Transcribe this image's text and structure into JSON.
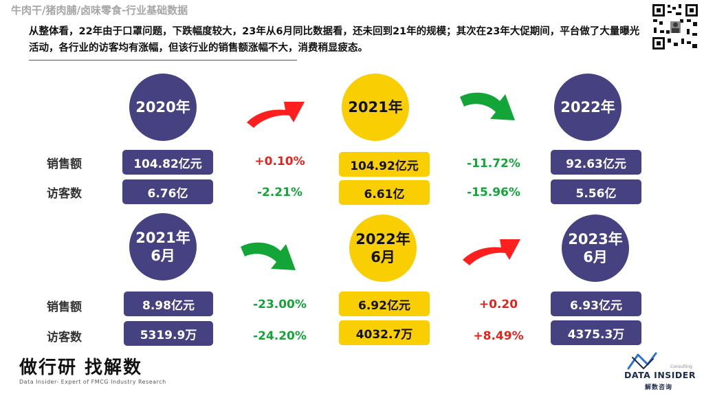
{
  "header": {
    "category_title": "牛肉干/猪肉脯/卤味零食-行业基础数据",
    "summary": "从整体看，22年由于口罩问题，下跌幅度较大，23年从6月同比数据看，还未回到21年的规模；其次在23年大促期间，平台做了大量曝光活动，各行业的访客均有涨幅，但该行业的销售额涨幅不大，消费稍显疲态。"
  },
  "row_labels": {
    "sales": "销售额",
    "visitors": "访客数"
  },
  "annual": {
    "periods": [
      {
        "label": "2020年",
        "sales": "104.82亿元",
        "visitors": "6.76亿",
        "color": "#464281"
      },
      {
        "label": "2021年",
        "sales": "104.92亿元",
        "visitors": "6.61亿",
        "color": "#f9cf04"
      },
      {
        "label": "2022年",
        "sales": "92.63亿元",
        "visitors": "5.56亿",
        "color": "#464281"
      }
    ],
    "changes": [
      {
        "sales": "+0.10%",
        "visitors": "-2.21%",
        "arrow": "up-red"
      },
      {
        "sales": "-11.72%",
        "visitors": "-15.96%",
        "arrow": "down-green"
      }
    ]
  },
  "june": {
    "periods": [
      {
        "year": "2021年",
        "month": "6月",
        "sales": "8.98亿元",
        "visitors": "5319.9万",
        "color": "#464281"
      },
      {
        "year": "2022年",
        "month": "6月",
        "sales": "6.92亿元",
        "visitors": "4032.7万",
        "color": "#f9cf04"
      },
      {
        "year": "2023年",
        "month": "6月",
        "sales": "6.93亿元",
        "visitors": "4375.3万",
        "color": "#464281"
      }
    ],
    "changes": [
      {
        "sales": "-23.00%",
        "visitors": "-24.20%",
        "arrow": "down-green"
      },
      {
        "sales": "+0.20",
        "visitors": "+8.49%",
        "arrow": "up-red"
      }
    ]
  },
  "footer": {
    "brand_cn": "做行研 找解数",
    "brand_en": "Data Insider- Expert of FMCG Industry Research",
    "logo_name": "DATA INSIDER",
    "logo_sub": "Consulting",
    "logo_cn": "解数咨询"
  },
  "colors": {
    "navy": "#464281",
    "gold": "#f9cf04",
    "red": "#e2241c",
    "green": "#13a538"
  },
  "icons": [
    "qr-code-icon",
    "red-up-arrow-icon",
    "green-down-arrow-icon",
    "data-insider-logo-icon"
  ]
}
